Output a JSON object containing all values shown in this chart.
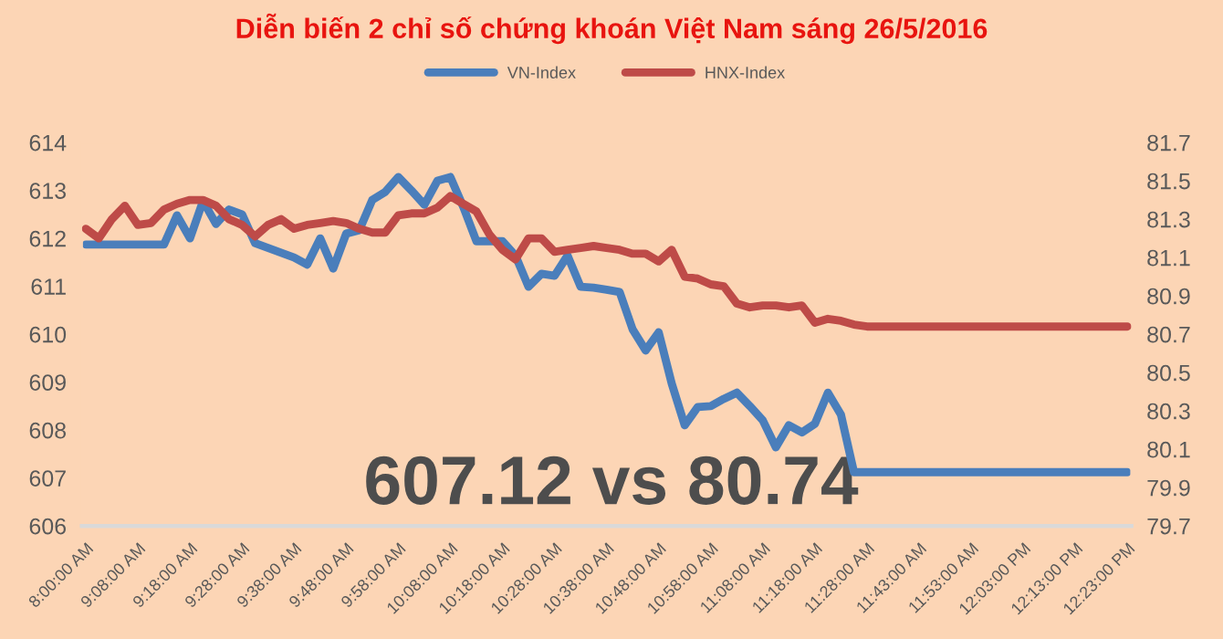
{
  "chart_data": {
    "type": "line",
    "title": "Diễn biến 2 chỉ số chứng khoán Việt Nam sáng 26/5/2016",
    "legend": "top",
    "grid": false,
    "line_style": "solid",
    "marker": "none",
    "categories": [
      "8:00:00 AM",
      null,
      null,
      null,
      "9:08:00 AM",
      null,
      null,
      null,
      "9:18:00 AM",
      null,
      null,
      null,
      "9:28:00 AM",
      null,
      null,
      null,
      "9:38:00 AM",
      null,
      null,
      null,
      "9:48:00 AM",
      null,
      null,
      null,
      "9:58:00 AM",
      null,
      null,
      null,
      "10:08:00 AM",
      null,
      null,
      null,
      "10:18:00 AM",
      null,
      null,
      null,
      "10:28:00 AM",
      null,
      null,
      null,
      "10:38:00 AM",
      null,
      null,
      null,
      "10:48:00 AM",
      null,
      null,
      null,
      "10:58:00 AM",
      null,
      null,
      null,
      "11:08:00 AM",
      null,
      null,
      null,
      "11:18:00 AM",
      null,
      null,
      null,
      "11:28:00 AM",
      null,
      null,
      null,
      "11:43:00 AM",
      null,
      null,
      null,
      "11:53:00 AM",
      null,
      null,
      null,
      "12:03:00 PM",
      null,
      null,
      null,
      "12:13:00 PM",
      null,
      null,
      null,
      "12:23:00 PM"
    ],
    "ylim": [
      606,
      614
    ],
    "yticks": [
      606,
      607,
      608,
      609,
      610,
      611,
      612,
      613,
      614
    ],
    "y2lim": [
      79.7,
      81.7
    ],
    "y2ticks": [
      {
        "value": 79.7,
        "label": "79.7"
      },
      {
        "value": 79.9,
        "label": "79.9"
      },
      {
        "value": 80.1,
        "label": "80.1"
      },
      {
        "value": 80.3,
        "label": "80.3"
      },
      {
        "value": 80.5,
        "label": "80.5"
      },
      {
        "value": 80.7,
        "label": "80.7"
      },
      {
        "value": 80.9,
        "label": "80.9"
      },
      {
        "value": 81.1,
        "label": "81.1"
      },
      {
        "value": 81.3,
        "label": "81.3"
      },
      {
        "value": 81.5,
        "label": "81.5"
      },
      {
        "value": 81.7,
        "label": "81.7"
      }
    ],
    "series": [
      {
        "name": "VN-Index",
        "color": "#4a7ebb",
        "values": [
          611.87,
          611.87,
          611.87,
          611.87,
          611.87,
          611.87,
          611.87,
          612.48,
          612.0,
          612.78,
          612.3,
          612.6,
          612.5,
          611.9,
          611.8,
          611.7,
          611.6,
          611.45,
          612.0,
          611.37,
          612.1,
          612.17,
          612.8,
          612.97,
          613.28,
          613.0,
          612.7,
          613.2,
          613.28,
          612.65,
          611.94,
          611.94,
          611.94,
          611.64,
          610.99,
          611.26,
          611.22,
          611.64,
          610.99,
          610.97,
          610.93,
          610.88,
          610.1,
          609.66,
          610.04,
          608.97,
          608.1,
          608.48,
          608.5,
          608.65,
          608.78,
          608.5,
          608.2,
          607.64,
          608.1,
          607.95,
          608.13,
          608.78,
          608.32,
          607.12,
          607.12,
          607.12,
          607.12,
          607.12,
          607.12,
          607.12,
          607.12,
          607.12,
          607.12,
          607.12,
          607.12,
          607.12,
          607.12,
          607.12,
          607.12,
          607.12,
          607.12,
          607.12,
          607.12,
          607.12,
          607.12
        ]
      },
      {
        "name": "HNX-Index",
        "color": "#be4b48",
        "axis": "y2",
        "values": [
          81.25,
          81.2,
          81.3,
          81.37,
          81.27,
          81.28,
          81.35,
          81.38,
          81.4,
          81.4,
          81.37,
          81.3,
          81.27,
          81.21,
          81.27,
          81.3,
          81.25,
          81.27,
          81.28,
          81.29,
          81.28,
          81.25,
          81.23,
          81.23,
          81.32,
          81.33,
          81.33,
          81.36,
          81.42,
          81.38,
          81.34,
          81.22,
          81.14,
          81.09,
          81.2,
          81.2,
          81.13,
          81.14,
          81.15,
          81.16,
          81.15,
          81.14,
          81.12,
          81.12,
          81.08,
          81.14,
          81.0,
          80.99,
          80.96,
          80.95,
          80.86,
          80.84,
          80.85,
          80.85,
          80.84,
          80.85,
          80.76,
          80.78,
          80.77,
          80.75,
          80.74,
          80.74,
          80.74,
          80.74,
          80.74,
          80.74,
          80.74,
          80.74,
          80.74,
          80.74,
          80.74,
          80.74,
          80.74,
          80.74,
          80.74,
          80.74,
          80.74,
          80.74,
          80.74,
          80.74,
          80.74
        ]
      }
    ],
    "annotations": [
      "607.12 vs 80.74"
    ]
  }
}
